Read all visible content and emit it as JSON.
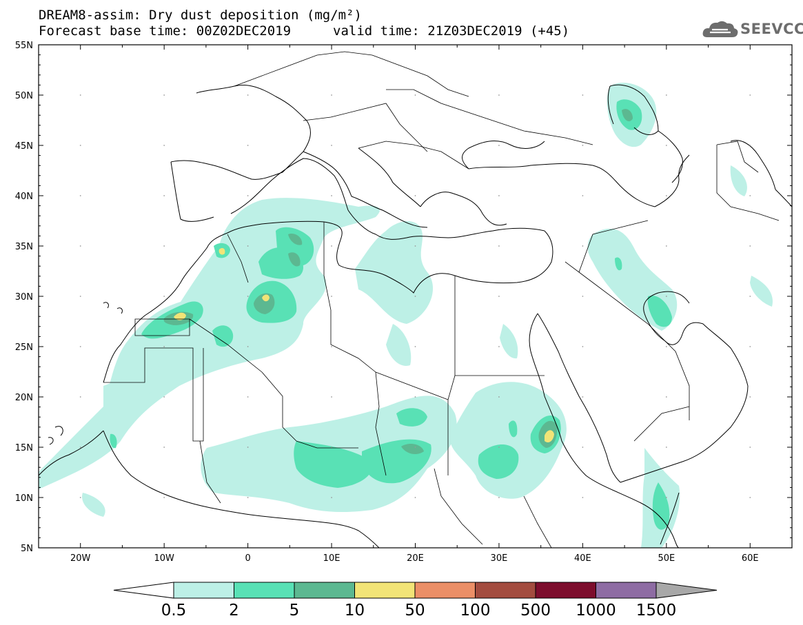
{
  "header": {
    "line1": "DREAM8-assim: Dry dust deposition (mg/m²)",
    "line2_left": "Forecast base time: 00Z02DEC2019",
    "line2_right": "valid time: 21Z03DEC2019 (+45)",
    "logo_text": "SEEVCCC",
    "logo_icon": "cloud-icon"
  },
  "map": {
    "lon_labels": [
      "20W",
      "10W",
      "0",
      "10E",
      "20E",
      "30E",
      "40E",
      "50E",
      "60E"
    ],
    "lat_labels": [
      "55N",
      "50N",
      "45N",
      "40N",
      "35N",
      "30N",
      "25N",
      "20N",
      "15N",
      "10N",
      "5N"
    ],
    "lon_range": [
      -25,
      65
    ],
    "lat_range": [
      5,
      55
    ]
  },
  "colorbar": {
    "labels": [
      "0.5",
      "2",
      "5",
      "10",
      "50",
      "100",
      "500",
      "1000",
      "1500"
    ],
    "colors": [
      "#bdf0e6",
      "#59e1b5",
      "#5cb891",
      "#f2e477",
      "#eb8f67",
      "#a34c3f",
      "#7d0d2d",
      "#8e6ca3",
      "#a8a8a8"
    ],
    "undercolor": "#ffffff"
  }
}
